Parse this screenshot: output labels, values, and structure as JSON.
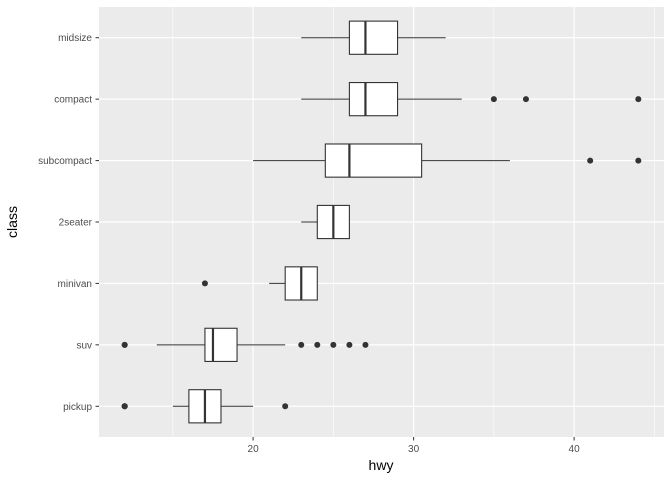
{
  "chart_data": {
    "type": "boxplot",
    "orientation": "horizontal",
    "xlabel": "hwy",
    "ylabel": "class",
    "xlim": [
      10.4,
      45.6
    ],
    "x_ticks": [
      20,
      30,
      40
    ],
    "grid": true,
    "categories": [
      "pickup",
      "suv",
      "minivan",
      "2seater",
      "subcompact",
      "compact",
      "midsize"
    ],
    "boxes": [
      {
        "category": "pickup",
        "whisker_low": 15,
        "q1": 16,
        "median": 17,
        "q3": 18,
        "whisker_high": 20,
        "outliers": [
          12,
          12,
          12,
          22
        ]
      },
      {
        "category": "suv",
        "whisker_low": 14,
        "q1": 17,
        "median": 17.5,
        "q3": 19,
        "whisker_high": 22,
        "outliers": [
          12,
          12,
          23,
          24,
          25,
          26,
          27
        ]
      },
      {
        "category": "minivan",
        "whisker_low": 21,
        "q1": 22,
        "median": 23,
        "q3": 24,
        "whisker_high": 24,
        "outliers": [
          17
        ]
      },
      {
        "category": "2seater",
        "whisker_low": 23,
        "q1": 24,
        "median": 25,
        "q3": 26,
        "whisker_high": 26,
        "outliers": []
      },
      {
        "category": "subcompact",
        "whisker_low": 20,
        "q1": 24.5,
        "median": 26,
        "q3": 30.5,
        "whisker_high": 36,
        "outliers": [
          41,
          44
        ]
      },
      {
        "category": "compact",
        "whisker_low": 23,
        "q1": 26,
        "median": 27,
        "q3": 29,
        "whisker_high": 33,
        "outliers": [
          35,
          37,
          44
        ]
      },
      {
        "category": "midsize",
        "whisker_low": 23,
        "q1": 26,
        "median": 27,
        "q3": 29,
        "whisker_high": 32,
        "outliers": []
      }
    ],
    "colors": {
      "panel_background": "#ebebeb",
      "grid_major": "#ffffff",
      "box_fill": "#ffffff",
      "box_stroke": "#333333",
      "outlier": "#333333",
      "tick_text": "#4d4d4d",
      "title_text": "#000000"
    }
  }
}
